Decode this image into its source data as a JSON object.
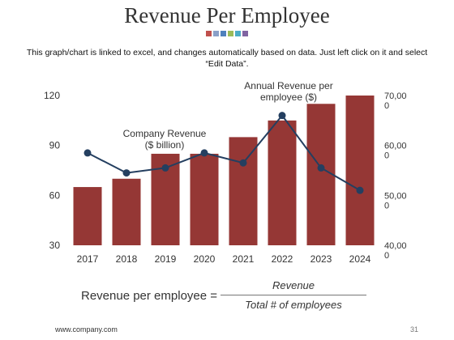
{
  "title": "Revenue Per Employee",
  "subtitle": "This graph/chart is linked to excel, and changes automatically based on data. Just left click on it and select “Edit Data”.",
  "decor_colors": [
    "#c0504d",
    "#8aa0c8",
    "#4f81bd",
    "#9bbb59",
    "#4bacc6",
    "#8064a2"
  ],
  "chart_data": {
    "type": "bar",
    "categories": [
      "2017",
      "2018",
      "2019",
      "2020",
      "2021",
      "2022",
      "2023",
      "2024"
    ],
    "series": [
      {
        "name": "Company Revenue ($ billion)",
        "type": "bar",
        "axis": "left",
        "color": "#953735",
        "values": [
          65,
          70,
          85,
          85,
          95,
          105,
          115,
          120
        ]
      },
      {
        "name": "Annual Revenue per employee ($)",
        "type": "line",
        "axis": "right",
        "color": "#243f60",
        "values": [
          58500,
          54500,
          55500,
          58500,
          56500,
          66000,
          55500,
          51000
        ]
      }
    ],
    "y_left": {
      "min": 30,
      "max": 120,
      "ticks": [
        "30",
        "60",
        "90",
        "120"
      ]
    },
    "y_right": {
      "min": 40000,
      "max": 70000,
      "ticks": [
        "40,00\n0",
        "50,00\n0",
        "60,00\n0",
        "70,00\n0"
      ]
    },
    "annotations": [
      "Company Revenue\n($ billion)",
      "Annual Revenue per\nemployee ($)"
    ],
    "legend": "none",
    "grid": false
  },
  "formula": {
    "lhs": "Revenue per employee =",
    "numerator": "Revenue",
    "denominator": "Total # of employees"
  },
  "footer": {
    "url": "www.company.com",
    "page": "31"
  }
}
